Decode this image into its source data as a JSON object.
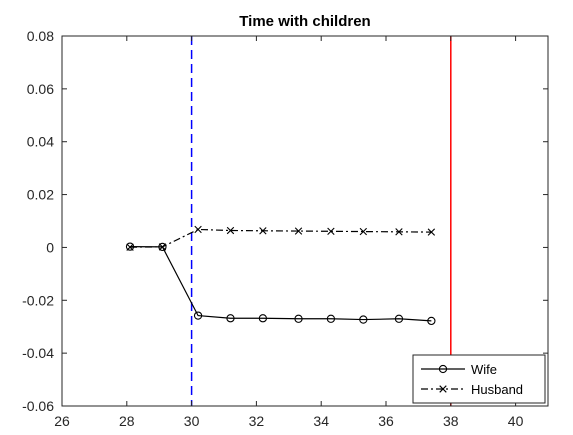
{
  "chart_data": {
    "type": "line",
    "title": "Time with children",
    "xlabel": "",
    "ylabel": "",
    "xlim": [
      26,
      41
    ],
    "ylim": [
      -0.06,
      0.08
    ],
    "x_ticks": [
      26,
      28,
      30,
      32,
      34,
      36,
      38,
      40
    ],
    "y_ticks": [
      -0.06,
      -0.04,
      -0.02,
      0,
      0.02,
      0.04,
      0.06,
      0.08
    ],
    "x_tick_labels": [
      "26",
      "28",
      "30",
      "32",
      "34",
      "36",
      "38",
      "40"
    ],
    "y_tick_labels": [
      "-0.06",
      "-0.04",
      "-0.02",
      "0",
      "0.02",
      "0.04",
      "0.06",
      "0.08"
    ],
    "grid": false,
    "legend_position": "bottom-right",
    "series": [
      {
        "name": "Wife",
        "style": "solid",
        "marker": "circle",
        "color": "#000000",
        "x": [
          28.1,
          29.1,
          30.2,
          31.2,
          32.2,
          33.3,
          34.3,
          35.3,
          36.4,
          37.4
        ],
        "y": [
          0.0003,
          0.0002,
          -0.0258,
          -0.0268,
          -0.0268,
          -0.027,
          -0.027,
          -0.0273,
          -0.027,
          -0.0278
        ]
      },
      {
        "name": "Husband",
        "style": "dashdot",
        "marker": "x",
        "color": "#000000",
        "x": [
          28.1,
          29.1,
          30.2,
          31.2,
          32.2,
          33.3,
          34.3,
          35.3,
          36.4,
          37.4
        ],
        "y": [
          0.0001,
          0.0002,
          0.0068,
          0.0064,
          0.0063,
          0.0062,
          0.0061,
          0.006,
          0.0059,
          0.0058
        ]
      }
    ],
    "reference_lines": [
      {
        "axis": "x",
        "value": 30,
        "style": "dashed",
        "color": "#0000ff"
      },
      {
        "axis": "x",
        "value": 38,
        "style": "solid",
        "color": "#ff0000"
      }
    ]
  }
}
